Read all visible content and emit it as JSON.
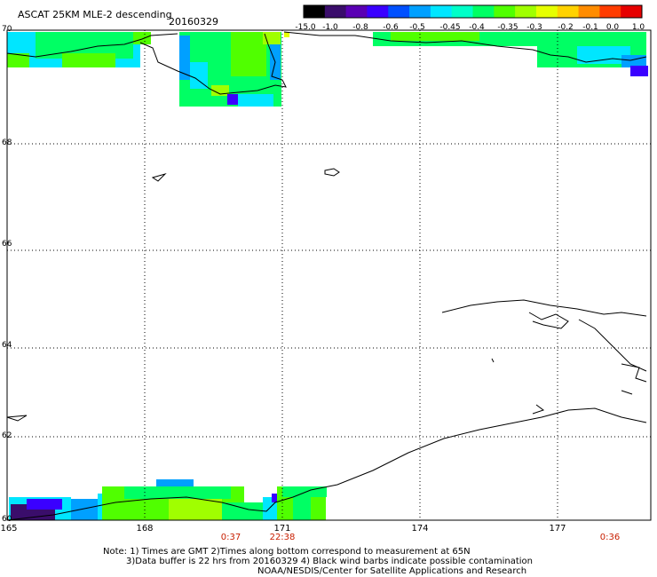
{
  "header": {
    "title": "ASCAT 25KM MLE-2 descending",
    "date": "20160329"
  },
  "colorbar": {
    "labels": [
      "-15.0",
      "-1.0",
      "-0.8",
      "-0.6",
      "-0.5",
      "-0.45",
      "-0.4",
      "-0.35",
      "-0.3",
      "-0.2",
      "-0.1",
      "0.0",
      "1.0"
    ],
    "colors": [
      "#000000",
      "#3a0d6b",
      "#5a00b4",
      "#3a00ff",
      "#0050ff",
      "#00a0ff",
      "#00e6ff",
      "#00ffc8",
      "#00ff64",
      "#50ff00",
      "#a0ff00",
      "#e6ff00",
      "#ffd200",
      "#ff8c00",
      "#ff3c00",
      "#e60000"
    ]
  },
  "axes": {
    "lat_labels": [
      "70",
      "68",
      "66",
      "64",
      "62",
      "60"
    ],
    "lon_labels": [
      "165",
      "168",
      "171",
      "174",
      "177"
    ],
    "lat_range": [
      60,
      70
    ],
    "lon_range": [
      165,
      178
    ]
  },
  "times": {
    "t1": "0:37",
    "t2": "22:38",
    "t3": "0:36"
  },
  "notes": {
    "line1": "Note: 1) Times are GMT 2)Times along bottom correspond to measurement at 65N",
    "line2": "3)Data buffer is 22 hrs from 20160329 4) Black wind barbs indicate possible contamination",
    "line3": "NOAA/NESDIS/Center for Satellite Applications and Research"
  }
}
